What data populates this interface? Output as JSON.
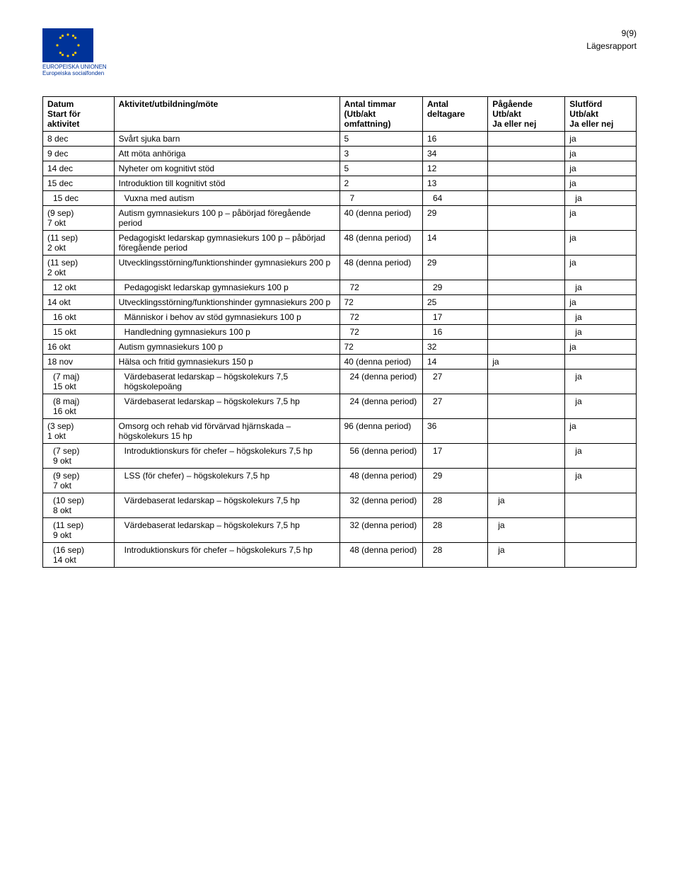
{
  "header": {
    "page_number": "9(9)",
    "report_label": "Lägesrapport",
    "logo_line1": "EUROPEISKA UNIONEN",
    "logo_line2": "Europeiska socialfonden"
  },
  "columns": {
    "c1a": "Datum",
    "c1b": "Start för",
    "c1c": "aktivitet",
    "c2": "Aktivitet/utbildning/möte",
    "c3a": "Antal timmar",
    "c3b": "(Utb/akt",
    "c3c": "omfattning)",
    "c4a": "Antal",
    "c4b": "deltagare",
    "c5a": "Pågående",
    "c5b": "Utb/akt",
    "c5c": "Ja eller nej",
    "c6a": "Slutförd",
    "c6b": "Utb/akt",
    "c6c": "Ja eller nej"
  },
  "rows": [
    {
      "c1": "8 dec",
      "c2": "Svårt sjuka barn",
      "c3": "5",
      "c4": "16",
      "c5": "",
      "c6": "ja"
    },
    {
      "c1": "9 dec",
      "c2": "Att möta anhöriga",
      "c3": "3",
      "c4": "34",
      "c5": "",
      "c6": "ja"
    },
    {
      "c1": "14 dec",
      "c2": "Nyheter om kognitivt stöd",
      "c3": "5",
      "c4": "12",
      "c5": "",
      "c6": "ja"
    },
    {
      "c1": "15 dec",
      "c2": "Introduktion till kognitivt stöd",
      "c3": "2",
      "c4": "13",
      "c5": "",
      "c6": "ja"
    },
    {
      "c1": "15 dec",
      "c2": "Vuxna med autism",
      "c3": "7",
      "c4": "64",
      "c5": "",
      "c6": "ja",
      "indent": true
    },
    {
      "c1": "(9 sep)\n7 okt",
      "c2": "Autism gymnasiekurs 100 p – påbörjad föregående period",
      "c3": "40 (denna period)",
      "c4": "29",
      "c5": "",
      "c6": "ja"
    },
    {
      "c1": "(11 sep)\n2 okt",
      "c2": "Pedagogiskt ledarskap gymnasiekurs 100 p – påbörjad föregående period",
      "c3": "48 (denna period)",
      "c4": "14",
      "c5": "",
      "c6": "ja"
    },
    {
      "c1": "(11 sep)\n2 okt",
      "c2": "Utvecklingsstörning/funktionshinder gymnasiekurs 200 p",
      "c3": "48 (denna period)",
      "c4": "29",
      "c5": "",
      "c6": "ja"
    },
    {
      "c1": "12 okt",
      "c2": "Pedagogiskt ledarskap gymnasiekurs 100 p",
      "c3": "72",
      "c4": "29",
      "c5": "",
      "c6": "ja",
      "indent": true
    },
    {
      "c1": "14 okt",
      "c2": "Utvecklingsstörning/funktionshinder gymnasiekurs 200 p",
      "c3": "72",
      "c4": "25",
      "c5": "",
      "c6": "ja"
    },
    {
      "c1": "16 okt",
      "c2": "Människor i behov av stöd gymnasiekurs 100 p",
      "c3": "72",
      "c4": "17",
      "c5": "",
      "c6": "ja",
      "indent": true
    },
    {
      "c1": "15 okt",
      "c2": "Handledning gymnasiekurs 100 p",
      "c3": "72",
      "c4": "16",
      "c5": "",
      "c6": "ja",
      "indent": true
    },
    {
      "c1": "16 okt",
      "c2": "Autism gymnasiekurs 100 p",
      "c3": "72",
      "c4": "32",
      "c5": "",
      "c6": "ja"
    },
    {
      "c1": "18 nov",
      "c2": "Hälsa och fritid gymnasiekurs 150 p",
      "c3": "40 (denna period)",
      "c4": "14",
      "c5": "ja",
      "c6": ""
    },
    {
      "c1": "(7 maj)\n15 okt",
      "c2": "Värdebaserat ledarskap – högskolekurs 7,5 högskolepoäng",
      "c3": "24 (denna period)",
      "c4": "27",
      "c5": "",
      "c6": "ja",
      "indent": true
    },
    {
      "c1": "(8 maj)\n16 okt",
      "c2": "Värdebaserat ledarskap – högskolekurs 7,5 hp",
      "c3": "24 (denna period)",
      "c4": "27",
      "c5": "",
      "c6": "ja",
      "indent": true
    },
    {
      "c1": "(3 sep)\n1 okt",
      "c2": "Omsorg och rehab vid förvärvad hjärnskada – högskolekurs 15 hp",
      "c3": "96 (denna period)",
      "c4": "36",
      "c5": "",
      "c6": "ja"
    },
    {
      "c1": "(7 sep)\n9 okt",
      "c2": "Introduktionskurs för chefer – högskolekurs 7,5 hp",
      "c3": "56 (denna period)",
      "c4": "17",
      "c5": "",
      "c6": "ja",
      "indent": true
    },
    {
      "c1": "(9 sep)\n7 okt",
      "c2": "LSS (för chefer) – högskolekurs 7,5 hp",
      "c3": "48 (denna period)",
      "c4": "29",
      "c5": "",
      "c6": "ja",
      "indent": true
    },
    {
      "c1": "(10 sep)\n8 okt",
      "c2": "Värdebaserat ledarskap – högskolekurs 7,5 hp",
      "c3": "32 (denna period)",
      "c4": "28",
      "c5": "ja",
      "c6": "",
      "indent": true
    },
    {
      "c1": "(11 sep)\n9 okt",
      "c2": "Värdebaserat ledarskap – högskolekurs 7,5 hp",
      "c3": "32 (denna period)",
      "c4": "28",
      "c5": "ja",
      "c6": "",
      "indent": true
    },
    {
      "c1": "(16 sep)\n14 okt",
      "c2": "Introduktionskurs för chefer – högskolekurs 7,5 hp",
      "c3": "48 (denna period)",
      "c4": "28",
      "c5": "ja",
      "c6": "",
      "indent": true
    }
  ]
}
